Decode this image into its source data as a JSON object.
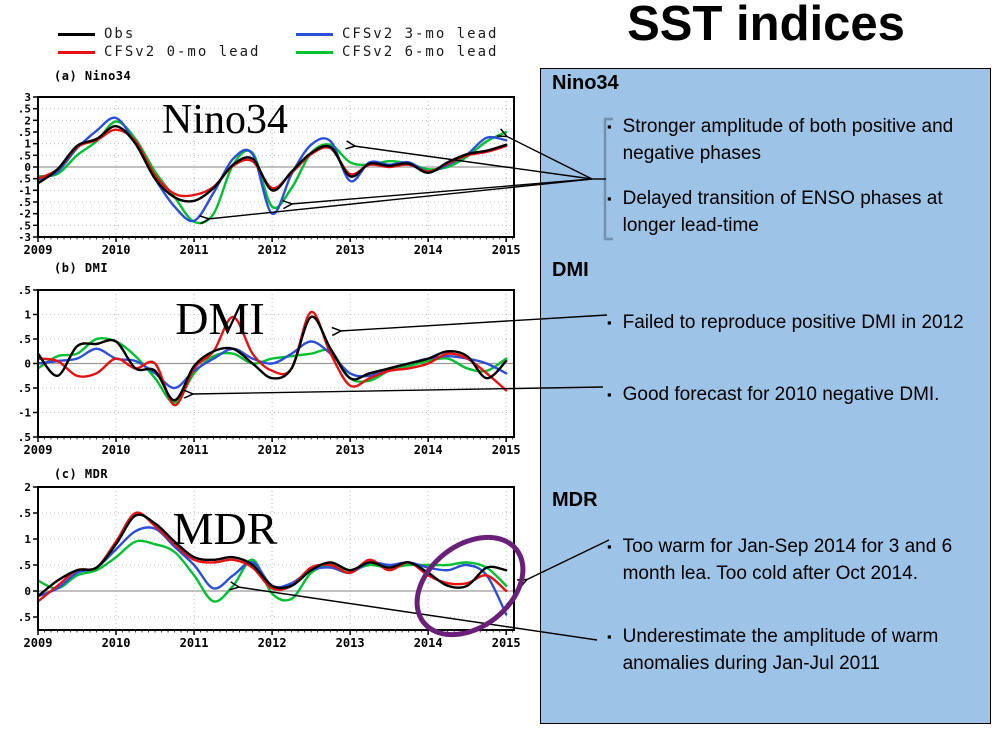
{
  "ui": {
    "bullet_char": "▪"
  },
  "title": "SST indices",
  "legend": {
    "items": [
      {
        "label": "Obs",
        "color": "#000000"
      },
      {
        "label": "CFSv2 0-mo lead",
        "color": "#e81111"
      },
      {
        "label": "CFSv2 3-mo lead",
        "color": "#2b4fd8"
      },
      {
        "label": "CFSv2 6-mo lead",
        "color": "#00c230"
      }
    ]
  },
  "notes_panel": {
    "background": "#9dc3e6",
    "highlight_ellipse_color": "#6a1f78",
    "sections": [
      {
        "heading": "Nino34",
        "bullets": [
          "Stronger amplitude of both positive and negative phases",
          "Delayed transition of ENSO phases at longer lead-time"
        ]
      },
      {
        "heading": "DMI",
        "bullets": [
          "Failed to reproduce positive DMI in 2012",
          "Good forecast for 2010 negative DMI."
        ]
      },
      {
        "heading": "MDR",
        "bullets": [
          "Too warm for Jan-Sep 2014 for 3 and 6 month lea.  Too cold after Oct 2014.",
          "Underestimate the amplitude of warm anomalies during Jan-Jul 2011"
        ]
      }
    ]
  },
  "chart_data": [
    {
      "type": "line",
      "panel_label": "(a) Nino34",
      "big_label": "Nino34",
      "xlabel": "",
      "ylabel": "",
      "grid": true,
      "legend_position": "above-figure",
      "xlim": [
        2009,
        2015.1
      ],
      "ylim": [
        -3,
        3
      ],
      "ytick_step": 0.5,
      "year_ticks": [
        2009,
        2010,
        2011,
        2012,
        2013,
        2014,
        2015
      ],
      "x_start": 2009,
      "x_step": 0.25,
      "series": [
        {
          "name": "Obs",
          "color": "#000000",
          "values": [
            -0.7,
            -0.1,
            0.9,
            1.2,
            1.75,
            1.0,
            -0.5,
            -1.3,
            -1.45,
            -0.9,
            0.1,
            0.35,
            -1.0,
            -0.2,
            0.6,
            0.85,
            -0.4,
            0.15,
            0.05,
            0.15,
            -0.25,
            0.2,
            0.55,
            0.7,
            0.95
          ]
        },
        {
          "name": "CFSv2 0-mo lead",
          "color": "#e81111",
          "values": [
            -0.5,
            -0.1,
            0.85,
            1.15,
            1.6,
            1.1,
            -0.35,
            -1.15,
            -1.2,
            -0.85,
            0.05,
            0.25,
            -0.9,
            -0.25,
            0.55,
            0.8,
            -0.3,
            0.1,
            0.0,
            0.1,
            -0.2,
            0.15,
            0.5,
            0.65,
            0.9
          ]
        },
        {
          "name": "CFSv2 3-mo lead",
          "color": "#2b4fd8",
          "values": [
            -0.55,
            -0.2,
            0.8,
            1.55,
            2.1,
            1.0,
            -0.5,
            -1.7,
            -2.3,
            -1.1,
            0.35,
            0.55,
            -2.0,
            -0.3,
            0.95,
            1.1,
            -0.6,
            0.2,
            0.1,
            0.2,
            -0.2,
            0.1,
            0.55,
            1.25,
            1.15
          ]
        },
        {
          "name": "CFSv2 6-mo lead",
          "color": "#00c230",
          "values": [
            -0.4,
            -0.3,
            0.5,
            1.1,
            1.95,
            1.2,
            -0.2,
            -1.3,
            -2.35,
            -2.0,
            0.1,
            0.6,
            -1.7,
            -0.9,
            0.6,
            0.95,
            0.2,
            0.1,
            0.25,
            0.15,
            -0.1,
            0.0,
            0.45,
            1.1,
            1.5
          ]
        }
      ]
    },
    {
      "type": "line",
      "panel_label": "(b) DMI",
      "big_label": "DMI",
      "xlabel": "",
      "ylabel": "",
      "grid": true,
      "legend_position": "above-figure",
      "xlim": [
        2009,
        2015.1
      ],
      "ylim": [
        -1.5,
        1.5
      ],
      "ytick_step": 0.5,
      "year_ticks": [
        2009,
        2010,
        2011,
        2012,
        2013,
        2014,
        2015
      ],
      "x_start": 2009,
      "x_step": 0.25,
      "series": [
        {
          "name": "Obs",
          "color": "#000000",
          "values": [
            0.2,
            -0.25,
            0.35,
            0.4,
            0.45,
            -0.1,
            -0.15,
            -0.75,
            -0.05,
            0.25,
            0.3,
            0.0,
            -0.3,
            -0.1,
            0.95,
            0.3,
            -0.3,
            -0.2,
            -0.1,
            0.0,
            0.1,
            0.25,
            0.15,
            -0.3,
            0.05
          ]
        },
        {
          "name": "CFSv2 0-mo lead",
          "color": "#e81111",
          "values": [
            0.1,
            0.05,
            -0.25,
            -0.2,
            0.1,
            -0.1,
            0.0,
            -0.85,
            -0.1,
            0.25,
            0.95,
            0.2,
            -0.15,
            -0.1,
            1.05,
            0.2,
            -0.45,
            -0.3,
            -0.15,
            -0.1,
            0.0,
            0.2,
            0.1,
            -0.2,
            -0.55
          ]
        },
        {
          "name": "CFSv2 3-mo lead",
          "color": "#2b4fd8",
          "values": [
            0.0,
            0.05,
            0.1,
            0.3,
            0.1,
            0.05,
            -0.2,
            -0.5,
            -0.15,
            0.1,
            0.3,
            0.1,
            0.0,
            0.2,
            0.45,
            0.2,
            -0.2,
            -0.25,
            -0.1,
            0.0,
            0.1,
            0.15,
            0.1,
            0.0,
            -0.2
          ]
        },
        {
          "name": "CFSv2 6-mo lead",
          "color": "#00c230",
          "values": [
            -0.1,
            0.15,
            0.2,
            0.5,
            0.45,
            0.15,
            -0.3,
            -0.8,
            -0.2,
            0.15,
            0.2,
            0.0,
            0.1,
            0.15,
            0.2,
            0.25,
            -0.3,
            -0.35,
            -0.15,
            -0.05,
            0.05,
            0.1,
            -0.1,
            -0.15,
            0.1
          ]
        }
      ]
    },
    {
      "type": "line",
      "panel_label": "(c) MDR",
      "big_label": "MDR",
      "xlabel": "",
      "ylabel": "",
      "grid": true,
      "legend_position": "above-figure",
      "xlim": [
        2009,
        2015.1
      ],
      "ylim": [
        -0.75,
        2
      ],
      "ytick_step": 0.5,
      "year_ticks": [
        2009,
        2010,
        2011,
        2012,
        2013,
        2014,
        2015
      ],
      "x_start": 2009,
      "x_step": 0.25,
      "series": [
        {
          "name": "Obs",
          "color": "#000000",
          "values": [
            -0.1,
            0.2,
            0.4,
            0.45,
            0.9,
            1.45,
            1.3,
            0.95,
            0.65,
            0.6,
            0.65,
            0.5,
            0.1,
            0.1,
            0.4,
            0.55,
            0.4,
            0.55,
            0.45,
            0.55,
            0.35,
            0.1,
            0.1,
            0.45,
            0.4
          ]
        },
        {
          "name": "CFSv2 0-mo lead",
          "color": "#e81111",
          "values": [
            -0.2,
            0.1,
            0.4,
            0.45,
            0.95,
            1.5,
            1.25,
            0.9,
            0.6,
            0.55,
            0.6,
            0.45,
            0.05,
            0.1,
            0.45,
            0.5,
            0.35,
            0.6,
            0.4,
            0.55,
            0.3,
            0.15,
            0.15,
            0.3,
            0.0
          ]
        },
        {
          "name": "CFSv2 3-mo lead",
          "color": "#2b4fd8",
          "values": [
            -0.1,
            0.05,
            0.35,
            0.45,
            0.8,
            1.15,
            1.2,
            0.85,
            0.5,
            0.05,
            0.3,
            0.55,
            0.1,
            0.15,
            0.4,
            0.45,
            0.35,
            0.55,
            0.5,
            0.55,
            0.45,
            0.4,
            0.5,
            0.3,
            -0.45
          ]
        },
        {
          "name": "CFSv2 6-mo lead",
          "color": "#00c230",
          "values": [
            0.2,
            0.05,
            0.3,
            0.4,
            0.65,
            0.95,
            0.9,
            0.75,
            0.3,
            -0.2,
            0.1,
            0.6,
            -0.05,
            -0.15,
            0.35,
            0.5,
            0.4,
            0.5,
            0.45,
            0.5,
            0.5,
            0.5,
            0.55,
            0.45,
            0.1
          ]
        }
      ]
    }
  ]
}
